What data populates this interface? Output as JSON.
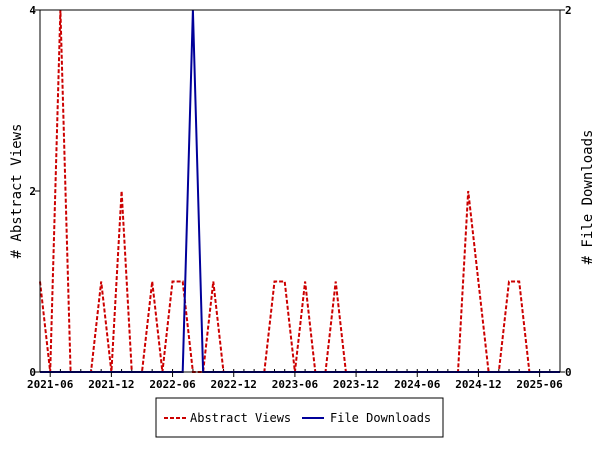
{
  "chart_data": {
    "type": "line",
    "x": [
      "2021-05",
      "2021-06",
      "2021-07",
      "2021-08",
      "2021-09",
      "2021-10",
      "2021-11",
      "2021-12",
      "2022-01",
      "2022-02",
      "2022-03",
      "2022-04",
      "2022-05",
      "2022-06",
      "2022-07",
      "2022-08",
      "2022-09",
      "2022-10",
      "2022-11",
      "2022-12",
      "2023-01",
      "2023-02",
      "2023-03",
      "2023-04",
      "2023-05",
      "2023-06",
      "2023-07",
      "2023-08",
      "2023-09",
      "2023-10",
      "2023-11",
      "2023-12",
      "2024-01",
      "2024-02",
      "2024-03",
      "2024-04",
      "2024-05",
      "2024-06",
      "2024-07",
      "2024-08",
      "2024-09",
      "2024-10",
      "2024-11",
      "2024-12",
      "2025-01",
      "2025-02",
      "2025-03",
      "2025-04",
      "2025-05",
      "2025-06",
      "2025-07",
      "2025-08"
    ],
    "x_ticks": [
      "2021-06",
      "2021-12",
      "2022-06",
      "2022-12",
      "2023-06",
      "2023-12",
      "2024-06",
      "2024-12",
      "2025-06"
    ],
    "series": [
      {
        "name": "Abstract Views",
        "axis": "left",
        "color": "#cc0000",
        "style": "dashed",
        "values": [
          1,
          0,
          4,
          0,
          0,
          0,
          1,
          0,
          2,
          0,
          0,
          1,
          0,
          1,
          1,
          0,
          0,
          1,
          0,
          0,
          0,
          0,
          0,
          1,
          1,
          0,
          1,
          0,
          0,
          1,
          0,
          0,
          0,
          0,
          0,
          0,
          0,
          0,
          0,
          0,
          0,
          0,
          2,
          1,
          0,
          0,
          1,
          1,
          0,
          0,
          0,
          0
        ]
      },
      {
        "name": "File Downloads",
        "axis": "right",
        "color": "#000099",
        "style": "solid",
        "values": [
          0,
          0,
          0,
          0,
          0,
          0,
          0,
          0,
          0,
          0,
          0,
          0,
          0,
          0,
          0,
          2,
          0,
          0,
          0,
          0,
          0,
          0,
          0,
          0,
          0,
          0,
          0,
          0,
          0,
          0,
          0,
          0,
          0,
          0,
          0,
          0,
          0,
          0,
          0,
          0,
          0,
          0,
          0,
          0,
          0,
          0,
          0,
          0,
          0,
          0,
          0,
          0
        ]
      }
    ],
    "ylabel_left": "# Abstract Views",
    "ylabel_right": "# File Downloads",
    "ylim_left": [
      0,
      4
    ],
    "yticks_left": [
      0,
      2,
      4
    ],
    "ylim_right": [
      0,
      2
    ],
    "yticks_right": [
      0,
      2
    ],
    "legend_position": "bottom-center"
  }
}
